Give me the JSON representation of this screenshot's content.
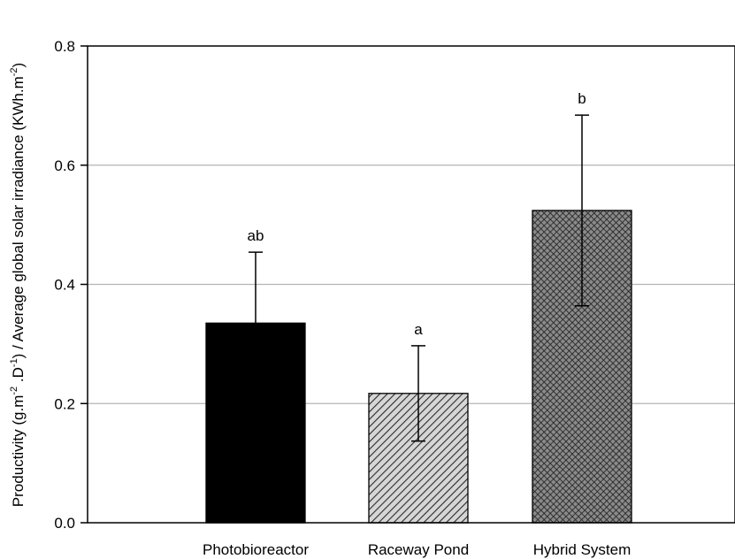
{
  "chart_data": {
    "type": "bar",
    "categories": [
      "Photobioreactor",
      "Raceway Pond",
      "Hybrid System"
    ],
    "values": [
      0.335,
      0.217,
      0.524
    ],
    "error_upper": [
      0.454,
      0.297,
      0.684
    ],
    "error_lower": [
      0.335,
      0.137,
      0.364
    ],
    "significance": [
      "ab",
      "a",
      "b"
    ],
    "ylabel": {
      "p1": "Productivity (g.m",
      "s1": "-2",
      "p2": " .D",
      "s2": "-1",
      "p3": ") / Average global solar irradiance (KWh.m",
      "s3": "-2",
      "p4": ")"
    },
    "xlabel": "",
    "ylim": [
      0,
      0.8
    ],
    "yticks": [
      "0.0",
      "0.2",
      "0.4",
      "0.6",
      "0.8"
    ],
    "ytick_values": [
      0,
      0.2,
      0.4,
      0.6,
      0.8
    ],
    "grid": true,
    "bar_fills": [
      "solid-black",
      "diagonal-hatch-gray",
      "crosshatch-dark-gray"
    ]
  }
}
